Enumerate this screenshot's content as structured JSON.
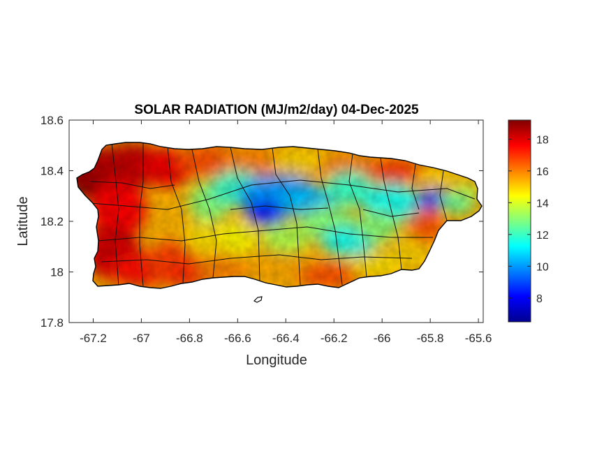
{
  "title": "SOLAR RADIATION (MJ/m2/day) 04-Dec-2025",
  "chart_data": {
    "type": "heatmap",
    "title": "SOLAR RADIATION (MJ/m2/day) 04-Dec-2025",
    "xlabel": "Longitude",
    "ylabel": "Latitude",
    "xlim": [
      -67.3,
      -65.58
    ],
    "ylim": [
      17.8,
      18.6
    ],
    "xticks": [
      -67.2,
      -67,
      -66.8,
      -66.6,
      -66.4,
      -66.2,
      -66,
      -65.8,
      -65.6
    ],
    "yticks": [
      17.8,
      18,
      18.2,
      18.4,
      18.6
    ],
    "xtick_labels": [
      "-67.2",
      "-67",
      "-66.8",
      "-66.6",
      "-66.4",
      "-66.2",
      "-66",
      "-65.8",
      "-65.6"
    ],
    "ytick_labels": [
      "17.8",
      "18",
      "18.2",
      "18.4",
      "18.6"
    ],
    "colormap": "jet",
    "colorbar": {
      "range": [
        6.5,
        19.2
      ],
      "ticks": [
        8,
        10,
        12,
        14,
        16,
        18
      ],
      "tick_labels": [
        "8",
        "10",
        "12",
        "14",
        "16",
        "18"
      ]
    },
    "regions": [
      {
        "area": "west and northwest coast",
        "approx_value": 18.5
      },
      {
        "area": "north-central coast",
        "approx_value": 16.5
      },
      {
        "area": "south coast",
        "approx_value": 16.5
      },
      {
        "area": "central interior mountains",
        "approx_value": 12
      },
      {
        "area": "central ridge minimum",
        "approx_value": 8.5
      },
      {
        "area": "northeast minimum",
        "approx_value": 9
      },
      {
        "area": "east coast",
        "approx_value": 14
      }
    ]
  }
}
